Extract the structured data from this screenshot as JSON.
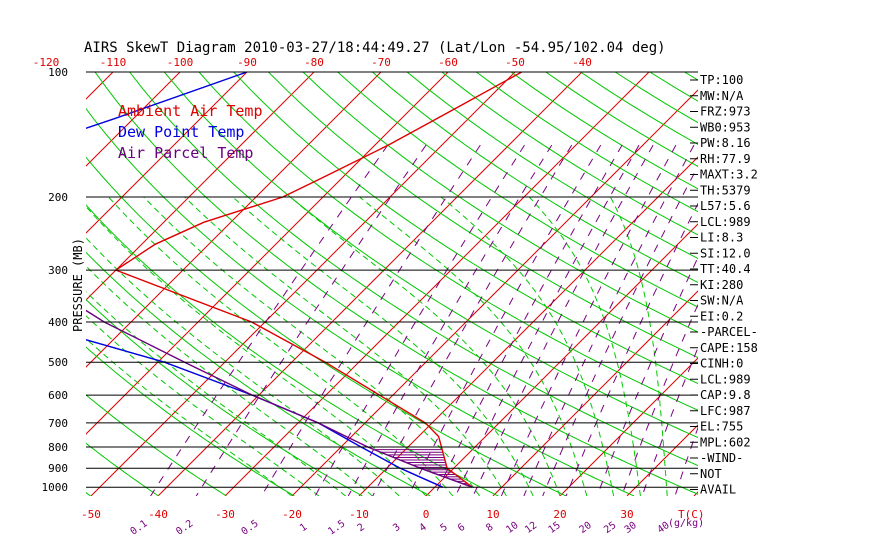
{
  "chart_data": {
    "type": "line",
    "title": "AIRS SkewT Diagram 2010-03-27/18:44:49.27 (Lat/Lon -54.95/102.04 deg)",
    "ylabel": "PRESSURE (MB)",
    "x_unit_label": "T(C)",
    "mixing_unit_label": "(g/kg)",
    "pressure_levels": [
      100,
      200,
      300,
      400,
      500,
      600,
      700,
      800,
      900,
      1000
    ],
    "temperature_ticks_top": [
      -120,
      -110,
      -100,
      -90,
      -80,
      -70,
      -60,
      -50,
      -40
    ],
    "temperature_ticks_bottom": [
      -50,
      -40,
      -30,
      -20,
      -10,
      0,
      10,
      20,
      30
    ],
    "mixing_ratio_labels": [
      "0.1",
      "0.2",
      "0.5",
      "1",
      "1.5",
      "2",
      "3",
      "4",
      "5",
      "6",
      "8",
      "10",
      "12",
      "15",
      "20",
      "25",
      "30",
      "40"
    ],
    "series": [
      {
        "name": "Ambient Air Temp",
        "color": "#e00000",
        "points": [
          [
            100,
            -49
          ],
          [
            120,
            -53
          ],
          [
            150,
            -58
          ],
          [
            180,
            -63
          ],
          [
            200,
            -66
          ],
          [
            230,
            -74
          ],
          [
            260,
            -78
          ],
          [
            300,
            -80
          ],
          [
            400,
            -52
          ],
          [
            500,
            -35
          ],
          [
            600,
            -22
          ],
          [
            700,
            -11
          ],
          [
            755,
            -7
          ],
          [
            800,
            -5
          ],
          [
            900,
            -1
          ],
          [
            1000,
            5.6
          ]
        ]
      },
      {
        "name": "Dew Point Temp",
        "color": "#0000e0",
        "points": [
          [
            100,
            -90
          ],
          [
            130,
            -103
          ],
          [
            160,
            -114
          ],
          [
            200,
            -118
          ],
          [
            300,
            -101
          ],
          [
            400,
            -86
          ],
          [
            500,
            -59
          ],
          [
            600,
            -41
          ],
          [
            700,
            -27
          ],
          [
            800,
            -17
          ],
          [
            900,
            -8
          ],
          [
            1000,
            1.2
          ]
        ]
      },
      {
        "name": "Air Parcel Temp",
        "color": "#6a0080",
        "points": [
          [
            100,
            -147
          ],
          [
            200,
            -117
          ],
          [
            300,
            -94
          ],
          [
            400,
            -74
          ],
          [
            500,
            -56
          ],
          [
            600,
            -41
          ],
          [
            700,
            -27
          ],
          [
            800,
            -16
          ],
          [
            900,
            -5
          ],
          [
            1000,
            5.6
          ]
        ]
      }
    ],
    "indices": [
      "TP:100",
      "MW:N/A",
      "FRZ:973",
      "WB0:953",
      "PW:8.16",
      "RH:77.9",
      "MAXT:3.2",
      "TH:5379",
      "L57:5.6",
      "LCL:989",
      "LI:8.3",
      "SI:12.0",
      "TT:40.4",
      "KI:280",
      "SW:N/A",
      "EI:0.2",
      "-PARCEL-",
      "CAPE:158",
      "CINH:0",
      "LCL:989",
      "CAP:9.8",
      "LFC:987",
      "EL:755",
      "MPL:602",
      "-WIND-",
      "NOT",
      "AVAIL"
    ],
    "colors": {
      "isotherm": "#e00000",
      "dry_adiabat": "#00c800",
      "moist_adiabat": "#00c800",
      "mixing_ratio": "#7a0080",
      "isobar": "#000000",
      "hatch": "#7a0080"
    }
  }
}
